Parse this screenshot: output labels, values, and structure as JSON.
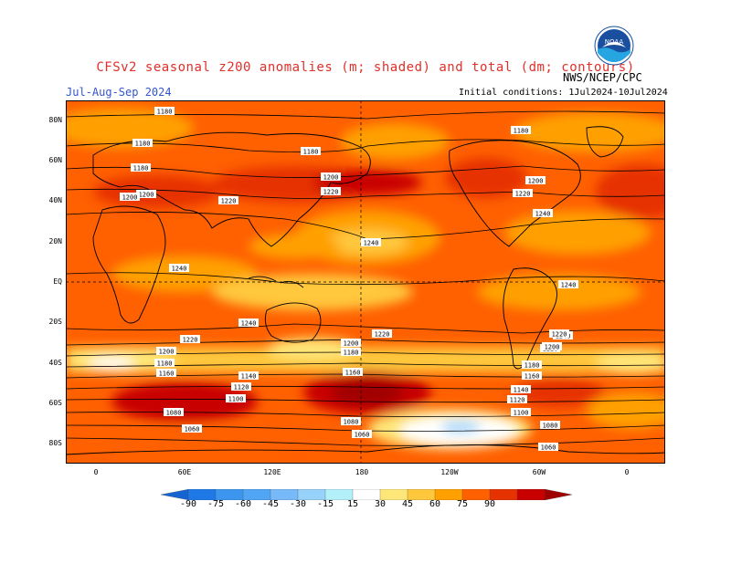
{
  "header": {
    "title": "CFSv2 seasonal z200 anomalies (m; shaded) and total (dm; contours)",
    "season": "Jul-Aug-Sep 2024",
    "agency": "NWS/NCEP/CPC",
    "initial_conditions": "Initial conditions: 1Jul2024-10Jul2024",
    "logo_text": "NOAA"
  },
  "axes": {
    "lat_labels": [
      "80N",
      "60N",
      "40N",
      "20N",
      "EQ",
      "20S",
      "40S",
      "60S",
      "80S"
    ],
    "lon_labels": [
      "0",
      "60E",
      "120E",
      "180",
      "120W",
      "60W",
      "0"
    ]
  },
  "contour_labels": [
    "1180",
    "1180",
    "1180",
    "1200",
    "1200",
    "1220",
    "1180",
    "1200",
    "1220",
    "1240",
    "1180",
    "1200",
    "1220",
    "1240",
    "1240",
    "1240",
    "1220",
    "1240",
    "1220",
    "1240",
    "1220",
    "1200",
    "1180",
    "1160",
    "1200",
    "1180",
    "1220",
    "1200",
    "1180",
    "1160",
    "1140",
    "1120",
    "1100",
    "1080",
    "1060",
    "1160",
    "1080",
    "1060",
    "1140",
    "1120",
    "1100",
    "1080",
    "1060"
  ],
  "colorbar": {
    "labels": [
      "-90",
      "-75",
      "-60",
      "-45",
      "-30",
      "-15",
      "15",
      "30",
      "45",
      "60",
      "75",
      "90"
    ],
    "colors": [
      "#1464d2",
      "#1e78e6",
      "#3c96f0",
      "#50a5f5",
      "#78b9fa",
      "#96d2fa",
      "#b4f0fa",
      "#ffffff",
      "#ffe678",
      "#ffc83c",
      "#ffa000",
      "#ff6000",
      "#e63200",
      "#c80000",
      "#a00000"
    ]
  }
}
